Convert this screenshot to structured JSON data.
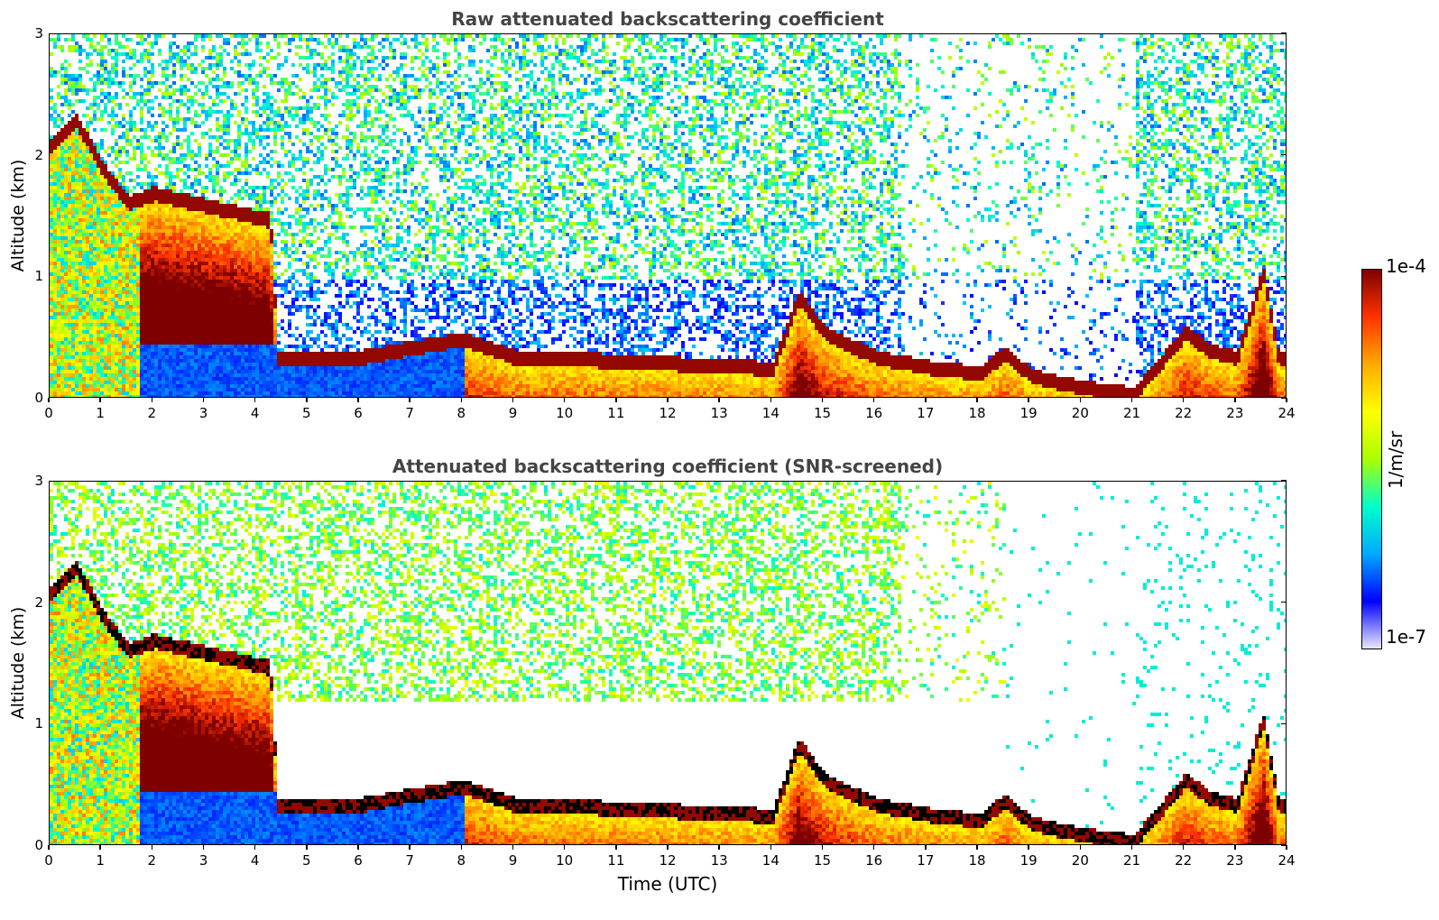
{
  "chart_data": [
    {
      "type": "heatmap",
      "title": "Raw attenuated backscattering coefficient",
      "xlabel": "",
      "ylabel": "Altitude (km)",
      "xlim": [
        0,
        24
      ],
      "ylim": [
        0,
        3
      ],
      "xticks": [
        "0",
        "1",
        "2",
        "3",
        "4",
        "5",
        "6",
        "7",
        "8",
        "9",
        "10",
        "11",
        "12",
        "13",
        "14",
        "15",
        "16",
        "17",
        "18",
        "19",
        "20",
        "21",
        "22",
        "23",
        "24"
      ],
      "yticks": [
        "0",
        "1",
        "2",
        "3"
      ],
      "layer_altitude_km": [
        [
          0,
          2.1
        ],
        [
          0.5,
          2.3
        ],
        [
          1,
          1.9
        ],
        [
          1.5,
          1.62
        ],
        [
          2,
          1.7
        ],
        [
          3,
          1.6
        ],
        [
          4.25,
          1.48
        ],
        [
          4.4,
          0.35
        ],
        [
          6,
          0.35
        ],
        [
          7,
          0.43
        ],
        [
          8,
          0.5
        ],
        [
          9,
          0.35
        ],
        [
          10,
          0.34
        ],
        [
          11,
          0.32
        ],
        [
          12,
          0.3
        ],
        [
          13,
          0.28
        ],
        [
          14,
          0.26
        ],
        [
          14.5,
          0.85
        ],
        [
          15,
          0.55
        ],
        [
          16,
          0.35
        ],
        [
          17,
          0.27
        ],
        [
          18,
          0.22
        ],
        [
          18.5,
          0.38
        ],
        [
          19,
          0.2
        ],
        [
          20,
          0.1
        ],
        [
          21,
          0.05
        ],
        [
          22,
          0.55
        ],
        [
          22.5,
          0.4
        ],
        [
          23,
          0.35
        ],
        [
          23.5,
          1.05
        ],
        [
          23.8,
          0.35
        ]
      ]
    },
    {
      "type": "heatmap",
      "title": "Attenuated backscattering coefficient (SNR-screened)",
      "xlabel": "Time (UTC)",
      "ylabel": "Altitude (km)",
      "xlim": [
        0,
        24
      ],
      "ylim": [
        0,
        3
      ],
      "xticks": [
        "0",
        "1",
        "2",
        "3",
        "4",
        "5",
        "6",
        "7",
        "8",
        "9",
        "10",
        "11",
        "12",
        "13",
        "14",
        "15",
        "16",
        "17",
        "18",
        "19",
        "20",
        "21",
        "22",
        "23",
        "24"
      ],
      "yticks": [
        "0",
        "1",
        "2",
        "3"
      ]
    }
  ],
  "colorbar": {
    "label": "1/m/sr",
    "max_label": "1e-4",
    "min_label": "1e-7",
    "scale": "log",
    "range": [
      1e-07,
      0.0001
    ],
    "colormap": [
      "#e8e8ff",
      "#0000ff",
      "#00aaff",
      "#00ffcc",
      "#aaff00",
      "#ffff00",
      "#ffaa00",
      "#ff3300",
      "#7f0000"
    ]
  }
}
